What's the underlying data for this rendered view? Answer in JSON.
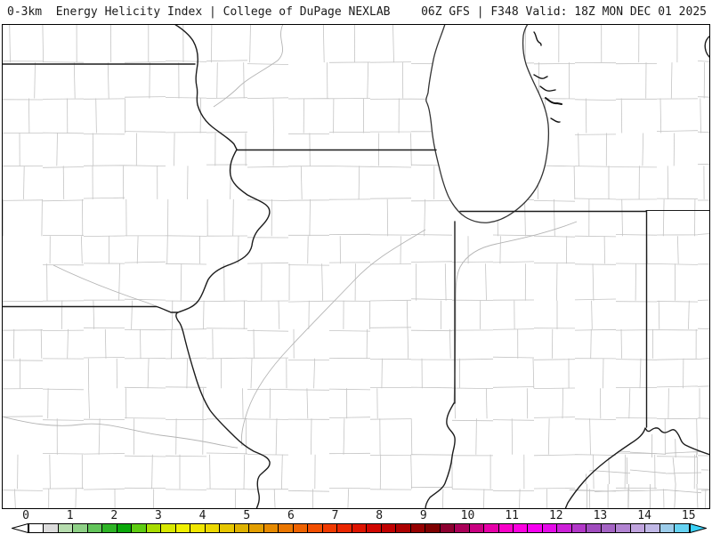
{
  "header": {
    "left": "0-3km  Energy Helicity Index | College of DuPage NEXLAB",
    "right": "06Z GFS | F348 Valid: 18Z MON DEC 01 2025",
    "parameter": "0-3km Energy Helicity Index",
    "source": "College of DuPage NEXLAB",
    "model_run": "06Z GFS",
    "forecast_hour": "F348",
    "valid_time": "18Z MON DEC 01 2025"
  },
  "map": {
    "description": "county-outline map of Midwest US (Iowa, Missouri, Wisconsin, Illinois, Indiana, Michigan, Ohio, Kentucky) with Lake Michigan",
    "background_color": "#ffffff",
    "county_line_color": "#c4c4c4",
    "state_line_color": "#1c1c1c",
    "river_line_color": "#b4b4b4"
  },
  "colorbar": {
    "tick_labels": [
      "0",
      "1",
      "2",
      "3",
      "4",
      "5",
      "6",
      "7",
      "8",
      "9",
      "10",
      "11",
      "12",
      "13",
      "14",
      "15"
    ],
    "left_arrow_color": "#ffffff",
    "right_arrow_color": "#38d0f6",
    "cell_colors": [
      "#ffffff",
      "#dcdcdc",
      "#b6dcae",
      "#8ed086",
      "#62c45a",
      "#2eb426",
      "#0aa80a",
      "#5ecc12",
      "#a8dc00",
      "#d8e800",
      "#f0f000",
      "#f0e600",
      "#ecd800",
      "#e6c600",
      "#deb200",
      "#e29e00",
      "#e68a00",
      "#ea7600",
      "#ee6200",
      "#f24e00",
      "#f03a00",
      "#ea2600",
      "#de1400",
      "#d00600",
      "#c00000",
      "#ac0000",
      "#960000",
      "#7e0000",
      "#8c0030",
      "#aa0058",
      "#c80080",
      "#e600a8",
      "#f800c8",
      "#fc00e0",
      "#f600f0",
      "#e40ae8",
      "#cc20d8",
      "#b238c8",
      "#a04cbe",
      "#a464c4",
      "#b284d2",
      "#c0a4de",
      "#c0b8e6",
      "#9cccea",
      "#66d2f2"
    ]
  }
}
